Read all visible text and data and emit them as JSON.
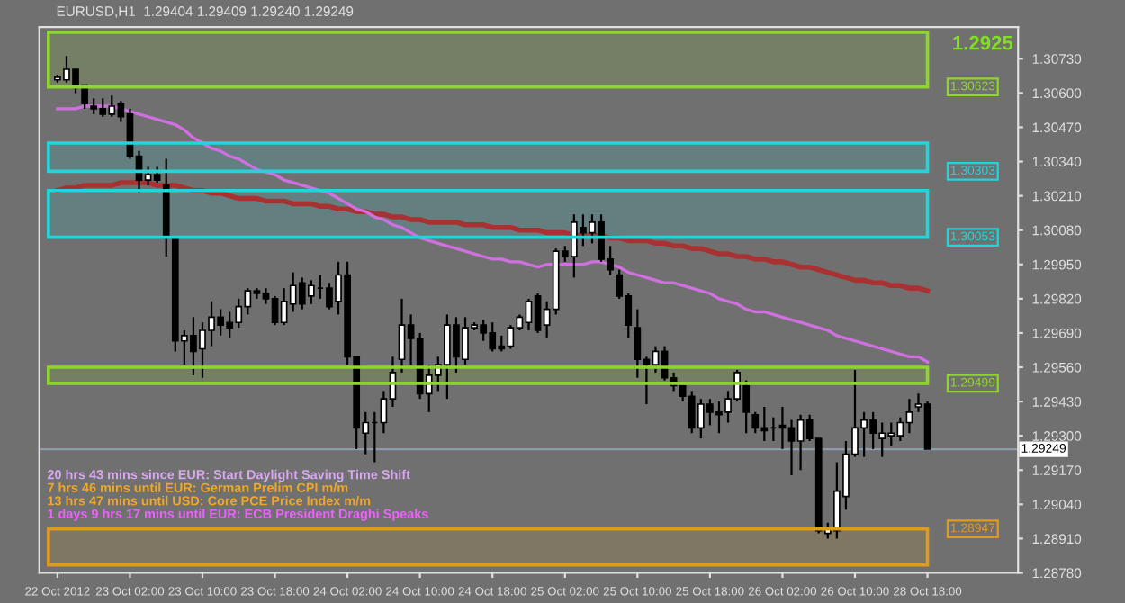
{
  "chart_data": {
    "type": "candlestick",
    "title": "EURUSD,H1  1.29404 1.29409 1.29240 1.29249",
    "categories": [
      "22 Oct 2012",
      null,
      null,
      null,
      null,
      null,
      null,
      null,
      "23 Oct 02:00",
      null,
      null,
      null,
      null,
      null,
      null,
      null,
      "23 Oct 10:00",
      null,
      null,
      null,
      null,
      null,
      null,
      null,
      "23 Oct 18:00",
      null,
      null,
      null,
      null,
      null,
      null,
      null,
      "24 Oct 02:00",
      null,
      null,
      null,
      null,
      null,
      null,
      null,
      "24 Oct 10:00",
      null,
      null,
      null,
      null,
      null,
      null,
      null,
      "24 Oct 18:00",
      null,
      null,
      null,
      null,
      null,
      null,
      null,
      "25 Oct 02:00",
      null,
      null,
      null,
      null,
      null,
      null,
      null,
      "25 Oct 10:00",
      null,
      null,
      null,
      null,
      null,
      null,
      null,
      "25 Oct 18:00",
      null,
      null,
      null,
      null,
      null,
      null,
      null,
      "26 Oct 02:00",
      null,
      null,
      null,
      null,
      null,
      null,
      null,
      "26 Oct 10:00",
      null,
      null,
      null,
      null,
      null,
      null,
      null,
      "28 Oct 18:00"
    ],
    "ohlc": [
      [
        1.3065,
        1.3067,
        1.3064,
        1.3066
      ],
      [
        1.3065,
        1.3074,
        1.3064,
        1.3069
      ],
      [
        1.3069,
        1.3069,
        1.306,
        1.3062
      ],
      [
        1.3063,
        1.3063,
        1.3054,
        1.3056
      ],
      [
        1.3055,
        1.3058,
        1.3052,
        1.3054
      ],
      [
        1.3054,
        1.3058,
        1.3051,
        1.3052
      ],
      [
        1.3052,
        1.3059,
        1.3051,
        1.3055
      ],
      [
        1.3056,
        1.3057,
        1.3049,
        1.3051
      ],
      [
        1.3052,
        1.3054,
        1.3035,
        1.3036
      ],
      [
        1.3036,
        1.3038,
        1.3022,
        1.3027
      ],
      [
        1.3027,
        1.3032,
        1.3025,
        1.3029
      ],
      [
        1.3029,
        1.3032,
        1.3026,
        1.3027
      ],
      [
        1.3025,
        1.3035,
        1.2998,
        1.3005
      ],
      [
        1.3005,
        1.3005,
        1.2962,
        1.2966
      ],
      [
        1.2966,
        1.297,
        1.2957,
        1.2968
      ],
      [
        1.2968,
        1.2975,
        1.2953,
        1.2962
      ],
      [
        1.2963,
        1.2973,
        1.2952,
        1.297
      ],
      [
        1.297,
        1.2981,
        1.2964,
        1.2975
      ],
      [
        1.2975,
        1.2978,
        1.2968,
        1.2972
      ],
      [
        1.2973,
        1.2977,
        1.2967,
        1.2971
      ],
      [
        1.2973,
        1.2982,
        1.2971,
        1.2979
      ],
      [
        1.2979,
        1.2986,
        1.2976,
        1.2985
      ],
      [
        1.2985,
        1.2986,
        1.2982,
        1.2984
      ],
      [
        1.2984,
        1.2986,
        1.298,
        1.2982
      ],
      [
        1.2982,
        1.2983,
        1.2972,
        1.2973
      ],
      [
        1.2973,
        1.2986,
        1.2972,
        1.2981
      ],
      [
        1.298,
        1.2992,
        1.2977,
        1.2987
      ],
      [
        1.2988,
        1.299,
        1.2978,
        1.298
      ],
      [
        1.2983,
        1.2989,
        1.298,
        1.2987
      ],
      [
        1.2986,
        1.2991,
        1.2982,
        1.2986
      ],
      [
        1.2986,
        1.2988,
        1.2978,
        1.2979
      ],
      [
        1.2981,
        1.2996,
        1.2976,
        1.2991
      ],
      [
        1.2991,
        1.2996,
        1.2957,
        1.296
      ],
      [
        1.296,
        1.296,
        1.2925,
        1.2933
      ],
      [
        1.2931,
        1.2939,
        1.2923,
        1.2935
      ],
      [
        1.2935,
        1.2939,
        1.292,
        1.2935
      ],
      [
        1.2935,
        1.2947,
        1.2931,
        1.2944
      ],
      [
        1.2944,
        1.296,
        1.2941,
        1.2954
      ],
      [
        1.2959,
        1.2982,
        1.2954,
        1.2972
      ],
      [
        1.2972,
        1.2976,
        1.2957,
        1.2967
      ],
      [
        1.2967,
        1.2969,
        1.2944,
        1.2946
      ],
      [
        1.2946,
        1.2957,
        1.2939,
        1.2953
      ],
      [
        1.2953,
        1.296,
        1.2947,
        1.2957
      ],
      [
        1.2957,
        1.2976,
        1.2944,
        1.2972
      ],
      [
        1.2972,
        1.2975,
        1.2954,
        1.296
      ],
      [
        1.2959,
        1.2975,
        1.2957,
        1.2971
      ],
      [
        1.2971,
        1.2973,
        1.297,
        1.2972
      ],
      [
        1.2972,
        1.2974,
        1.2966,
        1.2969
      ],
      [
        1.2969,
        1.2973,
        1.2962,
        1.2963
      ],
      [
        1.2964,
        1.2968,
        1.2962,
        1.2963
      ],
      [
        1.2964,
        1.2972,
        1.2963,
        1.2971
      ],
      [
        1.2971,
        1.2976,
        1.297,
        1.2975
      ],
      [
        1.2973,
        1.2982,
        1.297,
        1.2981
      ],
      [
        1.2983,
        1.2984,
        1.2969,
        1.297
      ],
      [
        1.2972,
        1.2981,
        1.2967,
        1.2978
      ],
      [
        1.2978,
        1.3001,
        1.2976,
        1.3
      ],
      [
        1.3,
        1.3002,
        1.2996,
        1.2998
      ],
      [
        1.2998,
        1.3014,
        1.299,
        1.3011
      ],
      [
        1.3009,
        1.3014,
        1.3002,
        1.3007
      ],
      [
        1.3007,
        1.3014,
        1.3003,
        1.3011
      ],
      [
        1.3011,
        1.3014,
        1.2996,
        1.2997
      ],
      [
        1.2997,
        1.3002,
        1.2991,
        1.2993
      ],
      [
        1.2991,
        1.2993,
        1.2982,
        1.2983
      ],
      [
        1.2983,
        1.2984,
        1.2967,
        1.2972
      ],
      [
        1.2971,
        1.2978,
        1.2952,
        1.2959
      ],
      [
        1.2959,
        1.296,
        1.2942,
        1.2957
      ],
      [
        1.2957,
        1.2964,
        1.2954,
        1.2962
      ],
      [
        1.2962,
        1.2964,
        1.2951,
        1.2952
      ],
      [
        1.2952,
        1.2954,
        1.2947,
        1.2949
      ],
      [
        1.2949,
        1.2949,
        1.2943,
        1.2945
      ],
      [
        1.2945,
        1.2947,
        1.2931,
        1.2933
      ],
      [
        1.2933,
        1.2944,
        1.2929,
        1.2942
      ],
      [
        1.2942,
        1.2944,
        1.2934,
        1.2939
      ],
      [
        1.2939,
        1.2943,
        1.2931,
        1.2938
      ],
      [
        1.2939,
        1.2947,
        1.2935,
        1.2944
      ],
      [
        1.2944,
        1.2955,
        1.2943,
        1.2954
      ],
      [
        1.2949,
        1.2951,
        1.2931,
        1.2939
      ],
      [
        1.2938,
        1.2939,
        1.2931,
        1.2933
      ],
      [
        1.2933,
        1.2941,
        1.2928,
        1.2932
      ],
      [
        1.2933,
        1.2937,
        1.2928,
        1.2933
      ],
      [
        1.2934,
        1.2941,
        1.2925,
        1.2933
      ],
      [
        1.2933,
        1.2936,
        1.2915,
        1.2928
      ],
      [
        1.2928,
        1.2938,
        1.2917,
        1.2936
      ],
      [
        1.2936,
        1.2938,
        1.2928,
        1.2929
      ],
      [
        1.2929,
        1.2929,
        1.2893,
        1.2894
      ],
      [
        1.2893,
        1.2897,
        1.2891,
        1.2895
      ],
      [
        1.2894,
        1.292,
        1.2891,
        1.2909
      ],
      [
        1.2907,
        1.2928,
        1.2902,
        1.2923
      ],
      [
        1.2923,
        1.2955,
        1.2922,
        1.2933
      ],
      [
        1.2933,
        1.2939,
        1.2922,
        1.2936
      ],
      [
        1.2936,
        1.2939,
        1.2925,
        1.2931
      ],
      [
        1.2929,
        1.2935,
        1.2922,
        1.2931
      ],
      [
        1.293,
        1.2935,
        1.2926,
        1.2931
      ],
      [
        1.293,
        1.2937,
        1.2928,
        1.2935
      ],
      [
        1.2935,
        1.2944,
        1.2931,
        1.2939
      ],
      [
        1.2941,
        1.2946,
        1.2939,
        1.2942
      ],
      [
        1.2942,
        1.2943,
        1.2925,
        1.2925
      ]
    ],
    "series": [
      {
        "type": "line",
        "color": "#d070e0",
        "values": [
          1.3054,
          1.3054,
          1.3054,
          1.3055,
          1.3055,
          1.3055,
          1.3055,
          1.3054,
          1.3053,
          1.3052,
          1.3051,
          1.305,
          1.3049,
          1.3048,
          1.3046,
          1.3043,
          1.3041,
          1.3039,
          1.3038,
          1.3036,
          1.3035,
          1.3033,
          1.3031,
          1.303,
          1.3029,
          1.3027,
          1.3026,
          1.3025,
          1.3024,
          1.3023,
          1.3022,
          1.302,
          1.3018,
          1.3016,
          1.3015,
          1.3013,
          1.3012,
          1.301,
          1.3009,
          1.3007,
          1.3005,
          1.3004,
          1.3003,
          1.3002,
          1.3001,
          1.3,
          1.2999,
          1.2998,
          1.2997,
          1.2997,
          1.2996,
          1.2996,
          1.2995,
          1.2994,
          1.2995,
          1.2995,
          1.2995,
          1.2995,
          1.2995,
          1.2996,
          1.2996,
          1.2995,
          1.2994,
          1.2992,
          1.2991,
          1.299,
          1.2989,
          1.2988,
          1.2988,
          1.2987,
          1.2986,
          1.2985,
          1.2984,
          1.2982,
          1.2981,
          1.298,
          1.2978,
          1.2977,
          1.2977,
          1.2976,
          1.2975,
          1.2974,
          1.2973,
          1.2972,
          1.2971,
          1.297,
          1.2968,
          1.2967,
          1.2966,
          1.2965,
          1.2964,
          1.2963,
          1.2962,
          1.2961,
          1.296,
          1.296,
          1.2958
        ]
      },
      {
        "type": "line",
        "color": "#a83232",
        "values": [
          1.3023,
          1.3024,
          1.3024,
          1.3025,
          1.3025,
          1.3025,
          1.3025,
          1.3026,
          1.3026,
          1.3026,
          1.3026,
          1.3025,
          1.3025,
          1.3025,
          1.3024,
          1.3023,
          1.3023,
          1.3022,
          1.3022,
          1.3021,
          1.302,
          1.302,
          1.302,
          1.3019,
          1.3019,
          1.3019,
          1.3018,
          1.3018,
          1.3018,
          1.3017,
          1.3017,
          1.3016,
          1.3016,
          1.3015,
          1.3015,
          1.3014,
          1.3014,
          1.3013,
          1.3013,
          1.3012,
          1.3012,
          1.3011,
          1.3011,
          1.3011,
          1.3011,
          1.301,
          1.301,
          1.301,
          1.3009,
          1.3009,
          1.3009,
          1.3008,
          1.3008,
          1.3008,
          1.3007,
          1.3007,
          1.3007,
          1.3006,
          1.3006,
          1.3006,
          1.3006,
          1.3005,
          1.3005,
          1.3004,
          1.3004,
          1.3004,
          1.3003,
          1.3003,
          1.3002,
          1.3002,
          1.3001,
          1.3001,
          1.3,
          1.2999,
          1.2999,
          1.2998,
          1.2998,
          1.2997,
          1.2997,
          1.2996,
          1.2996,
          1.2995,
          1.2994,
          1.2994,
          1.2993,
          1.2992,
          1.2991,
          1.299,
          1.2989,
          1.2989,
          1.2988,
          1.2988,
          1.2987,
          1.2987,
          1.2986,
          1.2986,
          1.2985
        ]
      }
    ],
    "ylim": [
      1.2878,
      1.3085
    ],
    "yticks": [
      {
        "value": 1.3073,
        "label": "1.30730"
      },
      {
        "value": 1.306,
        "label": "1.30600"
      },
      {
        "value": 1.3047,
        "label": "1.30470"
      },
      {
        "value": 1.3034,
        "label": "1.30340"
      },
      {
        "value": 1.3021,
        "label": "1.30210"
      },
      {
        "value": 1.3008,
        "label": "1.30080"
      },
      {
        "value": 1.2995,
        "label": "1.29950"
      },
      {
        "value": 1.2982,
        "label": "1.29820"
      },
      {
        "value": 1.2969,
        "label": "1.29690"
      },
      {
        "value": 1.2956,
        "label": "1.29560"
      },
      {
        "value": 1.2943,
        "label": "1.29430"
      },
      {
        "value": 1.293,
        "label": "1.29300"
      },
      {
        "value": 1.2917,
        "label": "1.29170"
      },
      {
        "value": 1.2904,
        "label": "1.29040"
      },
      {
        "value": 1.2891,
        "label": "1.28910"
      },
      {
        "value": 1.2878,
        "label": "1.28780"
      }
    ],
    "bands": [
      {
        "axis": "y",
        "from": 1.30623,
        "to": 1.3083,
        "label": "1.30623",
        "color": "#8fd62a"
      },
      {
        "axis": "y",
        "from": 1.30303,
        "to": 1.3041,
        "label": "1.30303",
        "color": "#22d4dc"
      },
      {
        "axis": "y",
        "from": 1.30053,
        "to": 1.3023,
        "label": "1.30053",
        "color": "#22d4dc"
      },
      {
        "axis": "y",
        "from": 1.29499,
        "to": 1.2956,
        "label": "1.29499",
        "color": "#8fd62a"
      },
      {
        "axis": "y",
        "from": 1.28947,
        "to": 1.2881,
        "label": "1.28947",
        "color": "#e09a20"
      }
    ],
    "ref_lines": [
      {
        "axis": "y",
        "value": 1.29249,
        "label": "1.29249",
        "color": "#8c9cb0"
      }
    ],
    "annotations": [
      "1.2925",
      "20 hrs 43 mins since EUR: Start Daylight Saving Time Shift",
      "7 hrs 46 mins until EUR: German Prelim CPI m/m",
      "13 hrs 47 mins until USD: Core PCE Price Index m/m",
      "1 days 9 hrs 17 mins until EUR: ECB President Draghi Speaks"
    ],
    "grid": false
  }
}
